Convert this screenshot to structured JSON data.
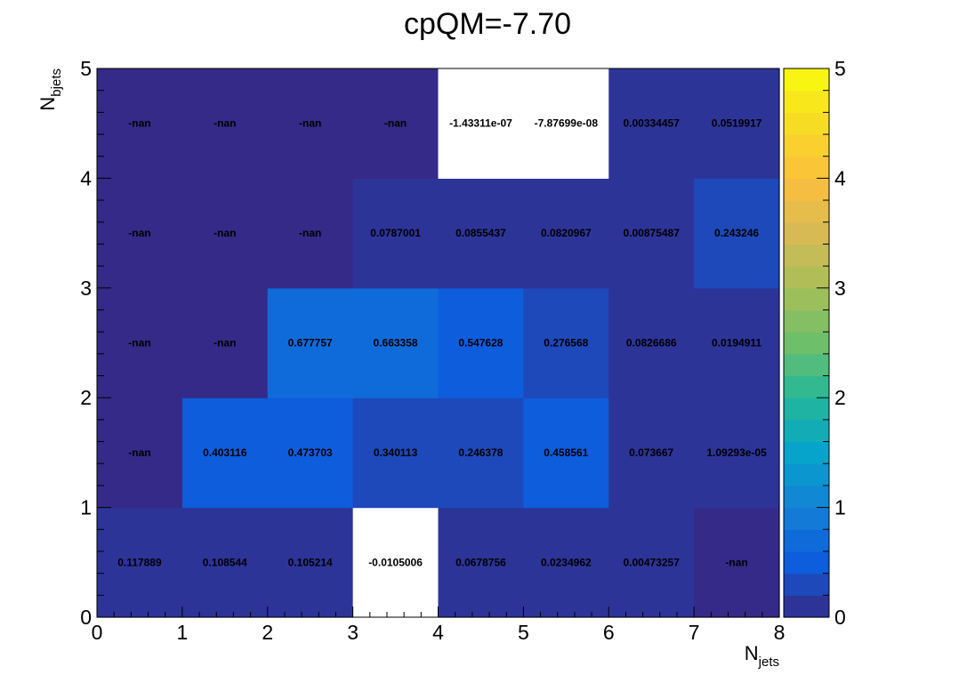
{
  "chart_data": {
    "type": "heatmap",
    "title": "cpQM=-7.70",
    "xlabel": {
      "main": "N",
      "sub": "jets"
    },
    "ylabel": {
      "main": "N",
      "sub": "bjets"
    },
    "xlim": [
      0,
      8
    ],
    "ylim": [
      0,
      5
    ],
    "zlim": [
      0,
      5
    ],
    "x_ticks": [
      "0",
      "1",
      "2",
      "3",
      "4",
      "5",
      "6",
      "7",
      "8"
    ],
    "y_ticks": [
      "0",
      "1",
      "2",
      "3",
      "4",
      "5"
    ],
    "z_ticks": [
      "0",
      "1",
      "2",
      "3",
      "4",
      "5"
    ],
    "colormap": "parula",
    "empty_cell_color": "#ffffff",
    "cells": [
      {
        "x": 0,
        "y": 0,
        "value": 0.117889,
        "label": "0.117889"
      },
      {
        "x": 1,
        "y": 0,
        "value": 0.108544,
        "label": "0.108544"
      },
      {
        "x": 2,
        "y": 0,
        "value": 0.105214,
        "label": "0.105214"
      },
      {
        "x": 3,
        "y": 0,
        "value": -0.0105006,
        "label": "-0.0105006"
      },
      {
        "x": 4,
        "y": 0,
        "value": 0.0678756,
        "label": "0.0678756"
      },
      {
        "x": 5,
        "y": 0,
        "value": 0.0234962,
        "label": "0.0234962"
      },
      {
        "x": 6,
        "y": 0,
        "value": 0.00473257,
        "label": "0.00473257"
      },
      {
        "x": 7,
        "y": 0,
        "value": null,
        "label": "-nan"
      },
      {
        "x": 0,
        "y": 1,
        "value": null,
        "label": "-nan"
      },
      {
        "x": 1,
        "y": 1,
        "value": 0.403116,
        "label": "0.403116"
      },
      {
        "x": 2,
        "y": 1,
        "value": 0.473703,
        "label": "0.473703"
      },
      {
        "x": 3,
        "y": 1,
        "value": 0.340113,
        "label": "0.340113"
      },
      {
        "x": 4,
        "y": 1,
        "value": 0.246378,
        "label": "0.246378"
      },
      {
        "x": 5,
        "y": 1,
        "value": 0.458561,
        "label": "0.458561"
      },
      {
        "x": 6,
        "y": 1,
        "value": 0.073667,
        "label": "0.073667"
      },
      {
        "x": 7,
        "y": 1,
        "value": 1.09293e-05,
        "label": "1.09293e-05"
      },
      {
        "x": 0,
        "y": 2,
        "value": null,
        "label": "-nan"
      },
      {
        "x": 1,
        "y": 2,
        "value": null,
        "label": "-nan"
      },
      {
        "x": 2,
        "y": 2,
        "value": 0.677757,
        "label": "0.677757"
      },
      {
        "x": 3,
        "y": 2,
        "value": 0.663358,
        "label": "0.663358"
      },
      {
        "x": 4,
        "y": 2,
        "value": 0.547628,
        "label": "0.547628"
      },
      {
        "x": 5,
        "y": 2,
        "value": 0.276568,
        "label": "0.276568"
      },
      {
        "x": 6,
        "y": 2,
        "value": 0.0826686,
        "label": "0.0826686"
      },
      {
        "x": 7,
        "y": 2,
        "value": 0.0194911,
        "label": "0.0194911"
      },
      {
        "x": 0,
        "y": 3,
        "value": null,
        "label": "-nan"
      },
      {
        "x": 1,
        "y": 3,
        "value": null,
        "label": "-nan"
      },
      {
        "x": 2,
        "y": 3,
        "value": null,
        "label": "-nan"
      },
      {
        "x": 3,
        "y": 3,
        "value": 0.0787001,
        "label": "0.0787001"
      },
      {
        "x": 4,
        "y": 3,
        "value": 0.0855437,
        "label": "0.0855437"
      },
      {
        "x": 5,
        "y": 3,
        "value": 0.0820967,
        "label": "0.0820967"
      },
      {
        "x": 6,
        "y": 3,
        "value": 0.00875487,
        "label": "0.00875487"
      },
      {
        "x": 7,
        "y": 3,
        "value": 0.243246,
        "label": "0.243246"
      },
      {
        "x": 0,
        "y": 4,
        "value": null,
        "label": "-nan"
      },
      {
        "x": 1,
        "y": 4,
        "value": null,
        "label": "-nan"
      },
      {
        "x": 2,
        "y": 4,
        "value": null,
        "label": "-nan"
      },
      {
        "x": 3,
        "y": 4,
        "value": null,
        "label": "-nan"
      },
      {
        "x": 4,
        "y": 4,
        "value": -1.43311e-07,
        "label": "-1.43311e-07"
      },
      {
        "x": 5,
        "y": 4,
        "value": -7.87699e-08,
        "label": "-7.87699e-08"
      },
      {
        "x": 6,
        "y": 4,
        "value": 0.00334457,
        "label": "0.00334457"
      },
      {
        "x": 7,
        "y": 4,
        "value": 0.0519917,
        "label": "0.0519917"
      }
    ]
  }
}
